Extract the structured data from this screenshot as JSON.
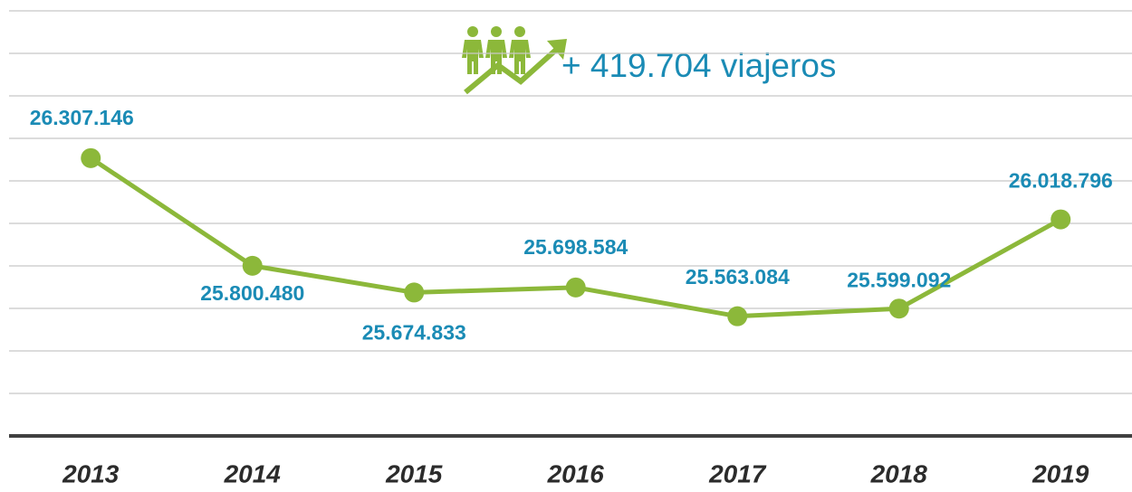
{
  "chart_data": {
    "type": "line",
    "annotation": "+ 419.704 viajeros",
    "categories": [
      "2013",
      "2014",
      "2015",
      "2016",
      "2017",
      "2018",
      "2019"
    ],
    "series": [
      {
        "color": "#8cb83a",
        "values": [
          26307146,
          25800480,
          25674833,
          25698584,
          25563084,
          25599092,
          26018796
        ],
        "value_labels": [
          "26.307.146",
          "25.800.480",
          "25.674.833",
          "25.698.584",
          "25.563.084",
          "25.599.092",
          "26.018.796"
        ]
      }
    ],
    "ylim": [
      25000000,
      27000000
    ],
    "yticks": [
      25000000,
      25200000,
      25400000,
      25600000,
      25800000,
      26000000,
      26200000,
      26400000,
      26600000,
      26800000,
      27000000
    ],
    "grid": true
  }
}
